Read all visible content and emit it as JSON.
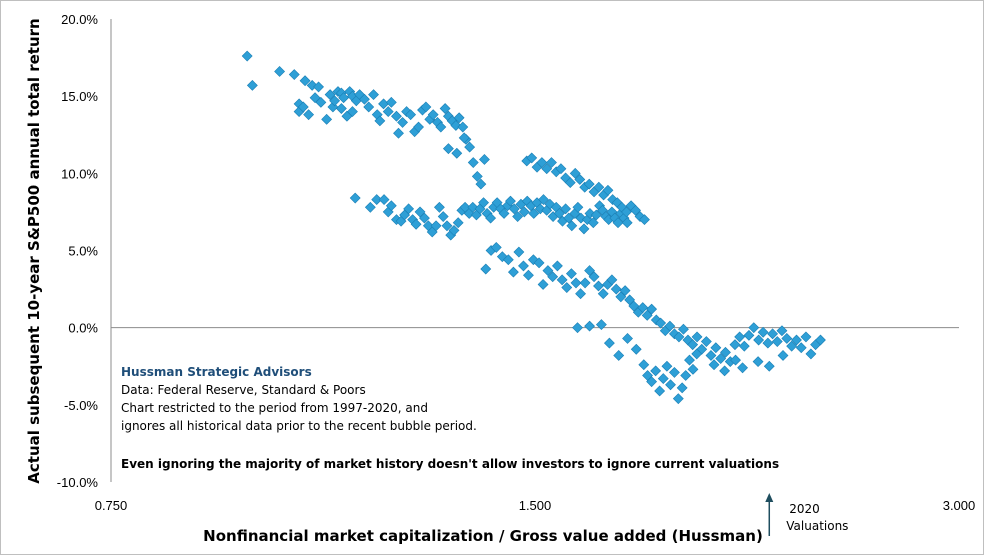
{
  "chart_data": {
    "type": "scatter",
    "xlabel": "Nonfinancial market capitalization / Gross value added (Hussman)",
    "ylabel": "Actual subsequent 10-year S&P500 annual total return",
    "xlim": [
      0.75,
      3.0
    ],
    "ylim": [
      -0.1,
      0.2
    ],
    "x_scale": "log",
    "x_ticks": [
      0.75,
      1.5,
      3.0
    ],
    "x_tick_labels": [
      "0.750",
      "1.500",
      "3.000"
    ],
    "y_ticks": [
      -0.1,
      -0.05,
      0.0,
      0.05,
      0.1,
      0.15,
      0.2
    ],
    "y_tick_labels": [
      "-10.0%",
      "-5.0%",
      "0.0%",
      "5.0%",
      "10.0%",
      "15.0%",
      "20.0%"
    ],
    "grid": false,
    "legend": "none",
    "marker": "diamond",
    "marker_color": "#2e9fd6",
    "series": [
      {
        "values": [
          [
            0.937,
            0.176
          ],
          [
            0.945,
            0.157
          ],
          [
            0.988,
            0.166
          ],
          [
            1.012,
            0.164
          ],
          [
            1.02,
            0.145
          ],
          [
            1.02,
            0.14
          ],
          [
            1.027,
            0.143
          ],
          [
            1.03,
            0.16
          ],
          [
            1.036,
            0.138
          ],
          [
            1.042,
            0.157
          ],
          [
            1.047,
            0.149
          ],
          [
            1.053,
            0.156
          ],
          [
            1.057,
            0.146
          ],
          [
            1.067,
            0.135
          ],
          [
            1.073,
            0.151
          ],
          [
            1.078,
            0.143
          ],
          [
            1.081,
            0.147
          ],
          [
            1.087,
            0.153
          ],
          [
            1.093,
            0.152
          ],
          [
            1.093,
            0.142
          ],
          [
            1.097,
            0.149
          ],
          [
            1.103,
            0.137
          ],
          [
            1.108,
            0.153
          ],
          [
            1.113,
            0.15
          ],
          [
            1.113,
            0.14
          ],
          [
            1.12,
            0.147
          ],
          [
            1.126,
            0.151
          ],
          [
            1.135,
            0.148
          ],
          [
            1.143,
            0.143
          ],
          [
            1.152,
            0.151
          ],
          [
            1.159,
            0.138
          ],
          [
            1.164,
            0.134
          ],
          [
            1.171,
            0.145
          ],
          [
            1.18,
            0.14
          ],
          [
            1.186,
            0.146
          ],
          [
            1.196,
            0.137
          ],
          [
            1.2,
            0.126
          ],
          [
            1.208,
            0.133
          ],
          [
            1.216,
            0.14
          ],
          [
            1.224,
            0.138
          ],
          [
            1.232,
            0.127
          ],
          [
            1.24,
            0.13
          ],
          [
            1.248,
            0.141
          ],
          [
            1.255,
            0.143
          ],
          [
            1.263,
            0.135
          ],
          [
            1.27,
            0.138
          ],
          [
            1.279,
            0.133
          ],
          [
            1.286,
            0.13
          ],
          [
            1.295,
            0.142
          ],
          [
            1.302,
            0.137
          ],
          [
            1.31,
            0.134
          ],
          [
            1.318,
            0.131
          ],
          [
            1.325,
            0.136
          ],
          [
            1.333,
            0.13
          ],
          [
            1.34,
            0.122
          ],
          [
            1.348,
            0.117
          ],
          [
            1.356,
            0.107
          ],
          [
            1.365,
            0.098
          ],
          [
            1.373,
            0.093
          ],
          [
            1.381,
            0.109
          ],
          [
            1.302,
            0.116
          ],
          [
            1.32,
            0.113
          ],
          [
            1.336,
            0.123
          ],
          [
            1.118,
            0.084
          ],
          [
            1.146,
            0.078
          ],
          [
            1.158,
            0.083
          ],
          [
            1.172,
            0.083
          ],
          [
            1.18,
            0.075
          ],
          [
            1.186,
            0.079
          ],
          [
            1.196,
            0.07
          ],
          [
            1.205,
            0.069
          ],
          [
            1.212,
            0.073
          ],
          [
            1.22,
            0.077
          ],
          [
            1.228,
            0.07
          ],
          [
            1.235,
            0.067
          ],
          [
            1.243,
            0.075
          ],
          [
            1.252,
            0.071
          ],
          [
            1.26,
            0.066
          ],
          [
            1.268,
            0.062
          ],
          [
            1.276,
            0.066
          ],
          [
            1.283,
            0.078
          ],
          [
            1.291,
            0.072
          ],
          [
            1.299,
            0.066
          ],
          [
            1.307,
            0.06
          ],
          [
            1.314,
            0.063
          ],
          [
            1.323,
            0.068
          ],
          [
            1.331,
            0.076
          ],
          [
            1.338,
            0.078
          ],
          [
            1.347,
            0.074
          ],
          [
            1.355,
            0.078
          ],
          [
            1.363,
            0.073
          ],
          [
            1.371,
            0.077
          ],
          [
            1.379,
            0.081
          ],
          [
            1.387,
            0.074
          ],
          [
            1.395,
            0.071
          ],
          [
            1.402,
            0.078
          ],
          [
            1.41,
            0.081
          ],
          [
            1.418,
            0.077
          ],
          [
            1.426,
            0.074
          ],
          [
            1.434,
            0.079
          ],
          [
            1.441,
            0.082
          ],
          [
            1.45,
            0.077
          ],
          [
            1.458,
            0.072
          ],
          [
            1.466,
            0.08
          ],
          [
            1.474,
            0.075
          ],
          [
            1.481,
            0.082
          ],
          [
            1.49,
            0.079
          ],
          [
            1.497,
            0.074
          ],
          [
            1.505,
            0.081
          ],
          [
            1.513,
            0.077
          ],
          [
            1.521,
            0.083
          ],
          [
            1.529,
            0.076
          ],
          [
            1.537,
            0.08
          ],
          [
            1.545,
            0.072
          ],
          [
            1.553,
            0.078
          ],
          [
            1.561,
            0.074
          ],
          [
            1.569,
            0.069
          ],
          [
            1.577,
            0.077
          ],
          [
            1.585,
            0.071
          ],
          [
            1.593,
            0.066
          ],
          [
            1.601,
            0.074
          ],
          [
            1.609,
            0.078
          ],
          [
            1.617,
            0.071
          ],
          [
            1.625,
            0.064
          ],
          [
            1.634,
            0.07
          ],
          [
            1.641,
            0.074
          ],
          [
            1.65,
            0.068
          ],
          [
            1.658,
            0.073
          ],
          [
            1.667,
            0.079
          ],
          [
            1.675,
            0.076
          ],
          [
            1.684,
            0.072
          ],
          [
            1.692,
            0.07
          ],
          [
            1.701,
            0.075
          ],
          [
            1.709,
            0.071
          ],
          [
            1.718,
            0.068
          ],
          [
            1.726,
            0.074
          ],
          [
            1.735,
            0.071
          ],
          [
            1.744,
            0.068
          ],
          [
            1.48,
            0.108
          ],
          [
            1.492,
            0.11
          ],
          [
            1.505,
            0.104
          ],
          [
            1.517,
            0.107
          ],
          [
            1.529,
            0.103
          ],
          [
            1.541,
            0.107
          ],
          [
            1.553,
            0.101
          ],
          [
            1.565,
            0.103
          ],
          [
            1.577,
            0.097
          ],
          [
            1.589,
            0.094
          ],
          [
            1.602,
            0.1
          ],
          [
            1.614,
            0.096
          ],
          [
            1.627,
            0.091
          ],
          [
            1.639,
            0.093
          ],
          [
            1.652,
            0.088
          ],
          [
            1.665,
            0.091
          ],
          [
            1.678,
            0.086
          ],
          [
            1.69,
            0.089
          ],
          [
            1.703,
            0.083
          ],
          [
            1.716,
            0.081
          ],
          [
            1.729,
            0.078
          ],
          [
            1.742,
            0.075
          ],
          [
            1.755,
            0.079
          ],
          [
            1.768,
            0.076
          ],
          [
            1.781,
            0.072
          ],
          [
            1.794,
            0.07
          ],
          [
            1.384,
            0.038
          ],
          [
            1.396,
            0.05
          ],
          [
            1.408,
            0.052
          ],
          [
            1.422,
            0.046
          ],
          [
            1.436,
            0.044
          ],
          [
            1.448,
            0.036
          ],
          [
            1.461,
            0.049
          ],
          [
            1.472,
            0.04
          ],
          [
            1.484,
            0.034
          ],
          [
            1.496,
            0.044
          ],
          [
            1.51,
            0.042
          ],
          [
            1.52,
            0.028
          ],
          [
            1.532,
            0.037
          ],
          [
            1.544,
            0.033
          ],
          [
            1.556,
            0.04
          ],
          [
            1.568,
            0.031
          ],
          [
            1.58,
            0.026
          ],
          [
            1.592,
            0.035
          ],
          [
            1.604,
            0.029
          ],
          [
            1.616,
            0.022
          ],
          [
            1.628,
            0.029
          ],
          [
            1.64,
            0.037
          ],
          [
            1.652,
            0.033
          ],
          [
            1.664,
            0.027
          ],
          [
            1.677,
            0.022
          ],
          [
            1.689,
            0.028
          ],
          [
            1.701,
            0.031
          ],
          [
            1.713,
            0.025
          ],
          [
            1.726,
            0.02
          ],
          [
            1.738,
            0.024
          ],
          [
            1.751,
            0.018
          ],
          [
            1.763,
            0.014
          ],
          [
            1.776,
            0.01
          ],
          [
            1.789,
            0.013
          ],
          [
            1.802,
            0.008
          ],
          [
            1.815,
            0.012
          ],
          [
            1.829,
            0.005
          ],
          [
            1.842,
            0.003
          ],
          [
            1.856,
            -0.002
          ],
          [
            1.87,
            0.001
          ],
          [
            1.884,
            -0.004
          ],
          [
            1.898,
            -0.006
          ],
          [
            1.912,
            -0.001
          ],
          [
            1.926,
            -0.008
          ],
          [
            1.941,
            -0.011
          ],
          [
            1.955,
            -0.006
          ],
          [
            1.97,
            -0.014
          ],
          [
            1.985,
            -0.009
          ],
          [
            2.0,
            -0.018
          ],
          [
            2.016,
            -0.013
          ],
          [
            2.032,
            -0.02
          ],
          [
            2.048,
            -0.016
          ],
          [
            2.064,
            -0.022
          ],
          [
            2.08,
            -0.011
          ],
          [
            2.096,
            -0.006
          ],
          [
            2.112,
            -0.012
          ],
          [
            2.128,
            -0.005
          ],
          [
            2.145,
            0.0
          ],
          [
            2.162,
            -0.008
          ],
          [
            2.178,
            -0.003
          ],
          [
            2.195,
            -0.01
          ],
          [
            2.212,
            -0.004
          ],
          [
            2.229,
            -0.009
          ],
          [
            2.246,
            -0.002
          ],
          [
            2.264,
            -0.007
          ],
          [
            2.282,
            -0.012
          ],
          [
            2.3,
            -0.008
          ],
          [
            2.318,
            -0.013
          ],
          [
            2.336,
            -0.006
          ],
          [
            2.355,
            -0.017
          ],
          [
            2.373,
            -0.011
          ],
          [
            2.392,
            -0.008
          ],
          [
            1.608,
            0.0
          ],
          [
            1.64,
            0.001
          ],
          [
            1.672,
            0.002
          ],
          [
            1.694,
            -0.01
          ],
          [
            1.72,
            -0.018
          ],
          [
            1.745,
            -0.007
          ],
          [
            1.77,
            -0.014
          ],
          [
            1.792,
            -0.024
          ],
          [
            1.803,
            -0.031
          ],
          [
            1.815,
            -0.035
          ],
          [
            1.827,
            -0.028
          ],
          [
            1.839,
            -0.041
          ],
          [
            1.85,
            -0.033
          ],
          [
            1.861,
            -0.025
          ],
          [
            1.872,
            -0.037
          ],
          [
            1.884,
            -0.029
          ],
          [
            1.896,
            -0.046
          ],
          [
            1.908,
            -0.039
          ],
          [
            1.919,
            -0.031
          ],
          [
            1.931,
            -0.021
          ],
          [
            1.942,
            -0.027
          ],
          [
            1.954,
            -0.017
          ],
          [
            2.01,
            -0.024
          ],
          [
            2.045,
            -0.028
          ],
          [
            2.082,
            -0.021
          ],
          [
            2.106,
            -0.026
          ],
          [
            2.16,
            -0.022
          ],
          [
            2.2,
            -0.025
          ],
          [
            2.25,
            -0.018
          ]
        ]
      }
    ],
    "annotations": [
      "Hussman Strategic Advisors",
      "Data: Federal Reserve, Standard & Poors",
      "Chart restricted to the period from 1997-2020,  and",
      "ignores all historical data prior to the recent bubble period.",
      "Even ignoring the majority of market history doesn't allow investors to ignore current valuations",
      "2020",
      "Valuations"
    ],
    "marker_arrow_x": 2.2
  }
}
